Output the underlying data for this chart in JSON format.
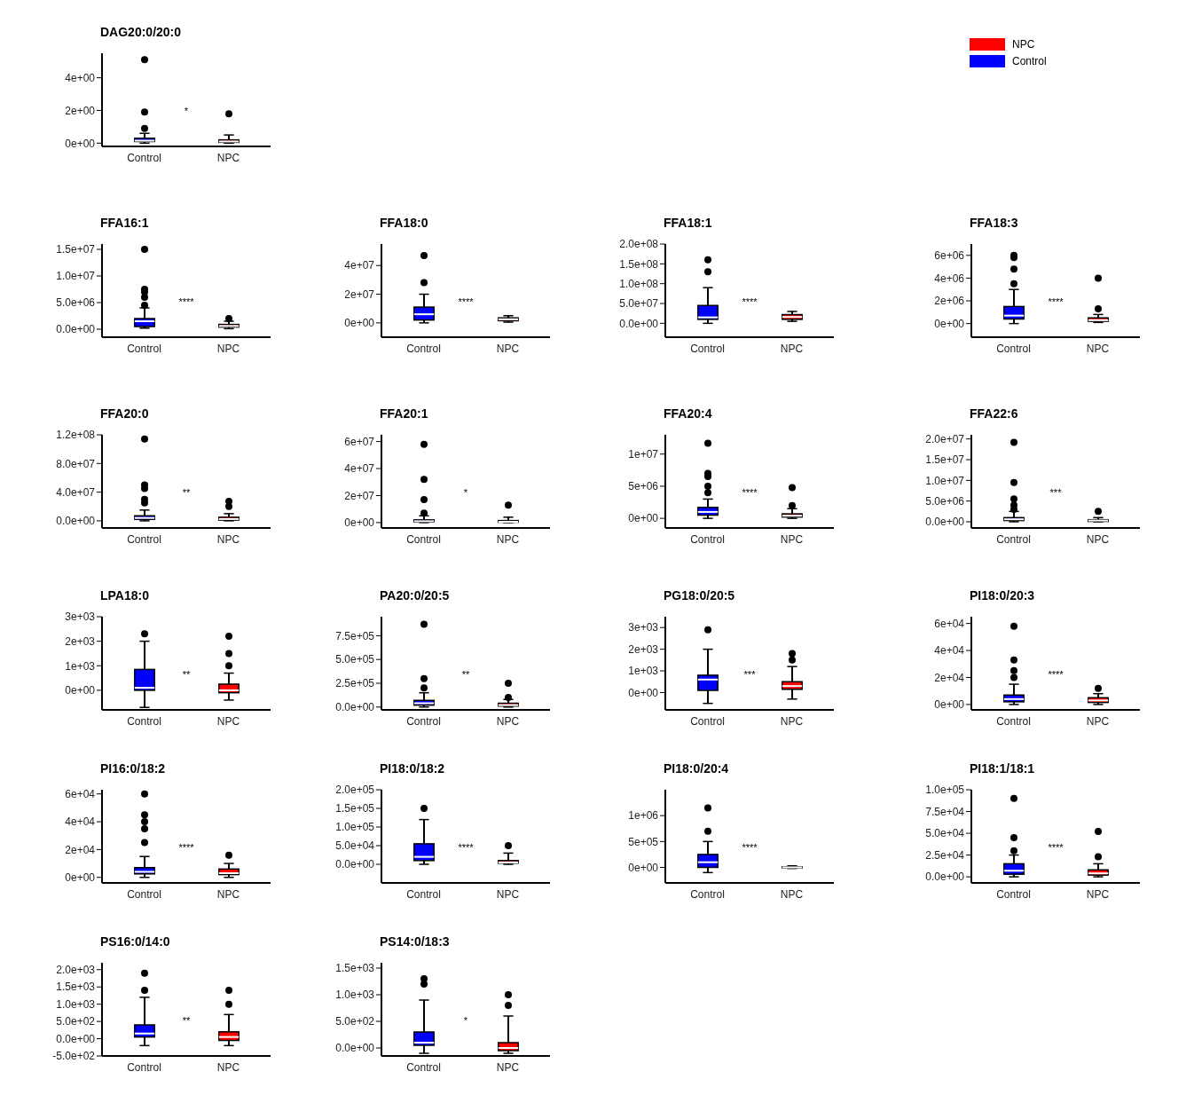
{
  "chart_data": [
    {
      "type": "box",
      "title": "DAG20:0/20:0",
      "categories": [
        "Control",
        "NPC"
      ],
      "ylim": [
        -0.2,
        5.5
      ],
      "yticks": [
        {
          "value": 0,
          "label": "0e+00"
        },
        {
          "value": 2,
          "label": "2e+00"
        },
        {
          "value": 4,
          "label": "4e+00"
        }
      ],
      "legend": "top right",
      "annotations": [
        "*"
      ],
      "series": [
        {
          "name": "Control",
          "color": "#0000ff",
          "boxes": [
            {
              "low": 0,
              "q1": 0.1,
              "median": 0.15,
              "q3": 0.3,
              "high": 0.6,
              "outliers": [
                0.9,
                1.9,
                5.1
              ]
            },
            null
          ]
        },
        {
          "name": "NPC",
          "color": "#ff0000",
          "boxes": [
            null,
            {
              "low": 0,
              "q1": 0.05,
              "median": 0.1,
              "q3": 0.2,
              "high": 0.5,
              "outliers": [
                1.8
              ]
            }
          ]
        }
      ]
    },
    {
      "type": "box",
      "title": "FFA16:1",
      "categories": [
        "Control",
        "NPC"
      ],
      "ylim": [
        -1500000,
        16000000
      ],
      "yticks": [
        {
          "value": 0,
          "label": "0.0e+00"
        },
        {
          "value": 5000000,
          "label": "5.0e+06"
        },
        {
          "value": 10000000,
          "label": "1.0e+07"
        },
        {
          "value": 15000000,
          "label": "1.5e+07"
        }
      ],
      "annotations": [
        "****"
      ],
      "series": [
        {
          "color": "#0000ff",
          "boxes": [
            {
              "low": 200000,
              "q1": 500000,
              "median": 1500000,
              "q3": 2000000,
              "high": 4000000,
              "outliers": [
                4500000,
                6000000,
                7000000,
                7500000,
                15000000
              ]
            },
            null
          ]
        },
        {
          "color": "#ff0000",
          "boxes": [
            null,
            {
              "low": 100000,
              "q1": 400000,
              "median": 600000,
              "q3": 900000,
              "high": 1500000,
              "outliers": [
                2000000
              ]
            }
          ]
        }
      ]
    },
    {
      "type": "box",
      "title": "FFA18:0",
      "categories": [
        "Control",
        "NPC"
      ],
      "ylim": [
        -10000000,
        55000000
      ],
      "yticks": [
        {
          "value": 0,
          "label": "0e+00"
        },
        {
          "value": 20000000,
          "label": "2e+07"
        },
        {
          "value": 40000000,
          "label": "4e+07"
        }
      ],
      "annotations": [
        "****"
      ],
      "series": [
        {
          "color": "#0000ff",
          "boxes": [
            {
              "low": 0,
              "q1": 2000000,
              "median": 6000000,
              "q3": 11000000,
              "high": 20000000,
              "outliers": [
                28000000,
                47000000
              ]
            },
            null
          ]
        },
        {
          "color": "#ff0000",
          "boxes": [
            null,
            {
              "low": 500000,
              "q1": 1500000,
              "median": 2500000,
              "q3": 3500000,
              "high": 5000000
            }
          ]
        }
      ]
    },
    {
      "type": "box",
      "title": "FFA18:1",
      "categories": [
        "Control",
        "NPC"
      ],
      "ylim": [
        -35000000,
        200000000
      ],
      "yticks": [
        {
          "value": 0,
          "label": "0.0e+00"
        },
        {
          "value": 50000000,
          "label": "5.0e+07"
        },
        {
          "value": 100000000,
          "label": "1.0e+08"
        },
        {
          "value": 150000000,
          "label": "1.5e+08"
        },
        {
          "value": 200000000,
          "label": "2.0e+08"
        }
      ],
      "annotations": [
        "****"
      ],
      "series": [
        {
          "color": "#0000ff",
          "boxes": [
            {
              "low": 0,
              "q1": 10000000,
              "median": 15000000,
              "q3": 45000000,
              "high": 90000000,
              "outliers": [
                130000000,
                160000000
              ]
            },
            null
          ]
        },
        {
          "color": "#ff0000",
          "boxes": [
            null,
            {
              "low": 5000000,
              "q1": 10000000,
              "median": 16000000,
              "q3": 22000000,
              "high": 30000000
            }
          ]
        }
      ]
    },
    {
      "type": "box",
      "title": "FFA18:3",
      "categories": [
        "Control",
        "NPC"
      ],
      "ylim": [
        -1200000,
        7000000
      ],
      "yticks": [
        {
          "value": 0,
          "label": "0e+00"
        },
        {
          "value": 2000000,
          "label": "2e+06"
        },
        {
          "value": 4000000,
          "label": "4e+06"
        },
        {
          "value": 6000000,
          "label": "6e+06"
        }
      ],
      "annotations": [
        "****"
      ],
      "series": [
        {
          "color": "#0000ff",
          "boxes": [
            {
              "low": 0,
              "q1": 400000,
              "median": 700000,
              "q3": 1500000,
              "high": 3000000,
              "outliers": [
                3500000,
                4800000,
                5800000,
                6000000
              ]
            },
            null
          ]
        },
        {
          "color": "#ff0000",
          "boxes": [
            null,
            {
              "low": 100000,
              "q1": 200000,
              "median": 300000,
              "q3": 500000,
              "high": 800000,
              "outliers": [
                1300000,
                4000000
              ]
            }
          ]
        }
      ]
    },
    {
      "type": "box",
      "title": "FFA20:0",
      "categories": [
        "Control",
        "NPC"
      ],
      "ylim": [
        -10000000,
        120000000
      ],
      "yticks": [
        {
          "value": 0,
          "label": "0.0e+00"
        },
        {
          "value": 40000000,
          "label": "4.0e+07"
        },
        {
          "value": 80000000,
          "label": "8.0e+07"
        },
        {
          "value": 120000000,
          "label": "1.2e+08"
        }
      ],
      "annotations": [
        "**"
      ],
      "series": [
        {
          "color": "#0000ff",
          "boxes": [
            {
              "low": 0,
              "q1": 2000000,
              "median": 4000000,
              "q3": 7000000,
              "high": 15000000,
              "outliers": [
                25000000,
                30000000,
                45000000,
                50000000,
                114000000
              ]
            },
            null
          ]
        },
        {
          "color": "#ff0000",
          "boxes": [
            null,
            {
              "low": 0,
              "q1": 1000000,
              "median": 2500000,
              "q3": 5000000,
              "high": 10000000,
              "outliers": [
                20000000,
                27000000
              ]
            }
          ]
        }
      ]
    },
    {
      "type": "box",
      "title": "FFA20:1",
      "categories": [
        "Control",
        "NPC"
      ],
      "ylim": [
        -4000000,
        65000000
      ],
      "yticks": [
        {
          "value": 0,
          "label": "0e+00"
        },
        {
          "value": 20000000,
          "label": "2e+07"
        },
        {
          "value": 40000000,
          "label": "4e+07"
        },
        {
          "value": 60000000,
          "label": "6e+07"
        }
      ],
      "annotations": [
        "*"
      ],
      "series": [
        {
          "color": "#0000ff",
          "boxes": [
            {
              "low": 0,
              "q1": 500000,
              "median": 1000000,
              "q3": 2000000,
              "high": 5000000,
              "outliers": [
                7000000,
                17000000,
                32000000,
                58000000
              ]
            },
            null
          ]
        },
        {
          "color": "#ff0000",
          "boxes": [
            null,
            {
              "low": 0,
              "q1": 300000,
              "median": 600000,
              "q3": 1500000,
              "high": 4000000,
              "outliers": [
                13000000
              ]
            }
          ]
        }
      ]
    },
    {
      "type": "box",
      "title": "FFA20:4",
      "categories": [
        "Control",
        "NPC"
      ],
      "ylim": [
        -1500000,
        13000000
      ],
      "yticks": [
        {
          "value": 0,
          "label": "0e+00"
        },
        {
          "value": 5000000,
          "label": "5e+06"
        },
        {
          "value": 10000000,
          "label": "1e+07"
        }
      ],
      "annotations": [
        "****"
      ],
      "series": [
        {
          "color": "#0000ff",
          "boxes": [
            {
              "low": 0,
              "q1": 500000,
              "median": 1000000,
              "q3": 1700000,
              "high": 3000000,
              "outliers": [
                4000000,
                5000000,
                6500000,
                7000000,
                11700000
              ]
            },
            null
          ]
        },
        {
          "color": "#ff0000",
          "boxes": [
            null,
            {
              "low": 0,
              "q1": 200000,
              "median": 400000,
              "q3": 700000,
              "high": 1500000,
              "outliers": [
                2000000,
                4800000
              ]
            }
          ]
        }
      ]
    },
    {
      "type": "box",
      "title": "FFA22:6",
      "categories": [
        "Control",
        "NPC"
      ],
      "ylim": [
        -1500000,
        21000000
      ],
      "yticks": [
        {
          "value": 0,
          "label": "0.0e+00"
        },
        {
          "value": 5000000,
          "label": "5.0e+06"
        },
        {
          "value": 10000000,
          "label": "1.0e+07"
        },
        {
          "value": 15000000,
          "label": "1.5e+07"
        },
        {
          "value": 20000000,
          "label": "2.0e+07"
        }
      ],
      "annotations": [
        "***"
      ],
      "series": [
        {
          "color": "#0000ff",
          "boxes": [
            {
              "low": 0,
              "q1": 300000,
              "median": 600000,
              "q3": 1000000,
              "high": 2500000,
              "outliers": [
                3000000,
                4000000,
                5500000,
                9500000,
                19200000
              ]
            },
            null
          ]
        },
        {
          "color": "#ff0000",
          "boxes": [
            null,
            {
              "low": 0,
              "q1": 100000,
              "median": 300000,
              "q3": 500000,
              "high": 1000000,
              "outliers": [
                2500000
              ]
            }
          ]
        }
      ]
    },
    {
      "type": "box",
      "title": "LPA18:0",
      "categories": [
        "Control",
        "NPC"
      ],
      "ylim": [
        -800,
        3000
      ],
      "yticks": [
        {
          "value": 0,
          "label": "0e+00"
        },
        {
          "value": 1000,
          "label": "1e+03"
        },
        {
          "value": 2000,
          "label": "2e+03"
        },
        {
          "value": 3000,
          "label": "3e+03"
        }
      ],
      "annotations": [
        "**"
      ],
      "series": [
        {
          "color": "#0000ff",
          "boxes": [
            {
              "low": -700,
              "q1": 0,
              "median": 100,
              "q3": 850,
              "high": 2000,
              "outliers": [
                2300
              ]
            },
            null
          ]
        },
        {
          "color": "#ff0000",
          "boxes": [
            null,
            {
              "low": -400,
              "q1": -100,
              "median": 0,
              "q3": 250,
              "high": 700,
              "outliers": [
                1000,
                1500,
                2200
              ]
            }
          ]
        }
      ]
    },
    {
      "type": "box",
      "title": "PA20:0/20:5",
      "categories": [
        "Control",
        "NPC"
      ],
      "ylim": [
        -30000,
        950000
      ],
      "yticks": [
        {
          "value": 0,
          "label": "0.0e+00"
        },
        {
          "value": 250000,
          "label": "2.5e+05"
        },
        {
          "value": 500000,
          "label": "5.0e+05"
        },
        {
          "value": 750000,
          "label": "7.5e+05"
        }
      ],
      "annotations": [
        "**"
      ],
      "series": [
        {
          "color": "#0000ff",
          "boxes": [
            {
              "low": 0,
              "q1": 20000,
              "median": 40000,
              "q3": 70000,
              "high": 150000,
              "outliers": [
                200000,
                300000,
                870000
              ]
            },
            null
          ]
        },
        {
          "color": "#ff0000",
          "boxes": [
            null,
            {
              "low": 0,
              "q1": 10000,
              "median": 20000,
              "q3": 40000,
              "high": 80000,
              "outliers": [
                100000,
                250000
              ]
            }
          ]
        }
      ]
    },
    {
      "type": "box",
      "title": "PG18:0/20:5",
      "categories": [
        "Control",
        "NPC"
      ],
      "ylim": [
        -800,
        3500
      ],
      "yticks": [
        {
          "value": 0,
          "label": "0e+00"
        },
        {
          "value": 1000,
          "label": "1e+03"
        },
        {
          "value": 2000,
          "label": "2e+03"
        },
        {
          "value": 3000,
          "label": "3e+03"
        }
      ],
      "annotations": [
        "***"
      ],
      "series": [
        {
          "color": "#0000ff",
          "boxes": [
            {
              "low": -500,
              "q1": 100,
              "median": 600,
              "q3": 800,
              "high": 2000,
              "outliers": [
                2900
              ]
            },
            null
          ]
        },
        {
          "color": "#ff0000",
          "boxes": [
            null,
            {
              "low": -300,
              "q1": 150,
              "median": 300,
              "q3": 500,
              "high": 1200,
              "outliers": [
                1500,
                1800
              ]
            }
          ]
        }
      ]
    },
    {
      "type": "box",
      "title": "PI18:0/20:3",
      "categories": [
        "Control",
        "NPC"
      ],
      "ylim": [
        -4000,
        65000
      ],
      "yticks": [
        {
          "value": 0,
          "label": "0e+00"
        },
        {
          "value": 20000,
          "label": "2e+04"
        },
        {
          "value": 40000,
          "label": "4e+04"
        },
        {
          "value": 60000,
          "label": "6e+04"
        }
      ],
      "annotations": [
        "****"
      ],
      "series": [
        {
          "color": "#0000ff",
          "boxes": [
            {
              "low": 0,
              "q1": 2000,
              "median": 4000,
              "q3": 7000,
              "high": 15000,
              "outliers": [
                20000,
                25000,
                33000,
                58000
              ]
            },
            null
          ]
        },
        {
          "color": "#ff0000",
          "boxes": [
            null,
            {
              "low": 0,
              "q1": 1500,
              "median": 3000,
              "q3": 5000,
              "high": 8000,
              "outliers": [
                12000
              ]
            }
          ]
        }
      ]
    },
    {
      "type": "box",
      "title": "PI16:0/18:2",
      "categories": [
        "Control",
        "NPC"
      ],
      "ylim": [
        -4000,
        63000
      ],
      "yticks": [
        {
          "value": 0,
          "label": "0e+00"
        },
        {
          "value": 20000,
          "label": "2e+04"
        },
        {
          "value": 40000,
          "label": "4e+04"
        },
        {
          "value": 60000,
          "label": "6e+04"
        }
      ],
      "annotations": [
        "****"
      ],
      "series": [
        {
          "color": "#0000ff",
          "boxes": [
            {
              "low": 0,
              "q1": 2500,
              "median": 4000,
              "q3": 7000,
              "high": 15000,
              "outliers": [
                25000,
                35000,
                40000,
                45000,
                60000
              ]
            },
            null
          ]
        },
        {
          "color": "#ff0000",
          "boxes": [
            null,
            {
              "low": 0,
              "q1": 2000,
              "median": 3000,
              "q3": 6000,
              "high": 10000,
              "outliers": [
                16000
              ]
            }
          ]
        }
      ]
    },
    {
      "type": "box",
      "title": "PI18:0/18:2",
      "categories": [
        "Control",
        "NPC"
      ],
      "ylim": [
        -50000,
        200000
      ],
      "yticks": [
        {
          "value": 0,
          "label": "0.0e+00"
        },
        {
          "value": 50000,
          "label": "5.0e+04"
        },
        {
          "value": 100000,
          "label": "1.0e+05"
        },
        {
          "value": 150000,
          "label": "1.5e+05"
        },
        {
          "value": 200000,
          "label": "2.0e+05"
        }
      ],
      "annotations": [
        "****"
      ],
      "series": [
        {
          "color": "#0000ff",
          "boxes": [
            {
              "low": 0,
              "q1": 10000,
              "median": 20000,
              "q3": 55000,
              "high": 120000,
              "outliers": [
                150000
              ]
            },
            null
          ]
        },
        {
          "color": "#ff0000",
          "boxes": [
            null,
            {
              "low": 0,
              "q1": 3000,
              "median": 5000,
              "q3": 10000,
              "high": 30000,
              "outliers": [
                50000
              ]
            }
          ]
        }
      ]
    },
    {
      "type": "box",
      "title": "PI18:0/20:4",
      "categories": [
        "Control",
        "NPC"
      ],
      "ylim": [
        -300000,
        1500000
      ],
      "yticks": [
        {
          "value": 0,
          "label": "0e+00"
        },
        {
          "value": 500000,
          "label": "5e+05"
        },
        {
          "value": 1000000,
          "label": "1e+06"
        }
      ],
      "annotations": [
        "****"
      ],
      "series": [
        {
          "color": "#0000ff",
          "boxes": [
            {
              "low": -100000,
              "q1": 0,
              "median": 100000,
              "q3": 250000,
              "high": 500000,
              "outliers": [
                700000,
                1150000
              ]
            },
            null
          ]
        },
        {
          "color": "#ff0000",
          "boxes": [
            null,
            {
              "low": -20000,
              "q1": -10000,
              "median": 0,
              "q3": 10000,
              "high": 30000
            }
          ]
        }
      ]
    },
    {
      "type": "box",
      "title": "PI18:1/18:1",
      "categories": [
        "Control",
        "NPC"
      ],
      "ylim": [
        -7000,
        100000
      ],
      "yticks": [
        {
          "value": 0,
          "label": "0.0e+00"
        },
        {
          "value": 25000,
          "label": "2.5e+04"
        },
        {
          "value": 50000,
          "label": "5.0e+04"
        },
        {
          "value": 75000,
          "label": "7.5e+04"
        },
        {
          "value": 100000,
          "label": "1.0e+05"
        }
      ],
      "annotations": [
        "****"
      ],
      "series": [
        {
          "color": "#0000ff",
          "boxes": [
            {
              "low": 0,
              "q1": 3000,
              "median": 7000,
              "q3": 15000,
              "high": 25000,
              "outliers": [
                30000,
                45000,
                90000
              ]
            },
            null
          ]
        },
        {
          "color": "#ff0000",
          "boxes": [
            null,
            {
              "low": 0,
              "q1": 2000,
              "median": 4000,
              "q3": 8000,
              "high": 15000,
              "outliers": [
                23000,
                52000
              ]
            }
          ]
        }
      ]
    },
    {
      "type": "box",
      "title": "PS16:0/14:0",
      "categories": [
        "Control",
        "NPC"
      ],
      "ylim": [
        -500,
        2200
      ],
      "yticks": [
        {
          "value": -500,
          "label": "-5.0e+02"
        },
        {
          "value": 0,
          "label": "0.0e+00"
        },
        {
          "value": 500,
          "label": "5.0e+02"
        },
        {
          "value": 1000,
          "label": "1.0e+03"
        },
        {
          "value": 1500,
          "label": "1.5e+03"
        },
        {
          "value": 2000,
          "label": "2.0e+03"
        }
      ],
      "annotations": [
        "**"
      ],
      "series": [
        {
          "color": "#0000ff",
          "boxes": [
            {
              "low": -200,
              "q1": 50,
              "median": 150,
              "q3": 400,
              "high": 1200,
              "outliers": [
                1400,
                1900
              ]
            },
            null
          ]
        },
        {
          "color": "#ff0000",
          "boxes": [
            null,
            {
              "low": -200,
              "q1": -50,
              "median": 50,
              "q3": 200,
              "high": 700,
              "outliers": [
                1000,
                1400
              ]
            }
          ]
        }
      ]
    },
    {
      "type": "box",
      "title": "PS14:0/18:3",
      "categories": [
        "Control",
        "NPC"
      ],
      "ylim": [
        -150,
        1600
      ],
      "yticks": [
        {
          "value": 0,
          "label": "0.0e+00"
        },
        {
          "value": 500,
          "label": "5.0e+02"
        },
        {
          "value": 1000,
          "label": "1.0e+03"
        },
        {
          "value": 1500,
          "label": "1.5e+03"
        }
      ],
      "annotations": [
        "*"
      ],
      "series": [
        {
          "color": "#0000ff",
          "boxes": [
            {
              "low": -100,
              "q1": 50,
              "median": 100,
              "q3": 300,
              "high": 900,
              "outliers": [
                1200,
                1300
              ]
            },
            null
          ]
        },
        {
          "color": "#ff0000",
          "boxes": [
            null,
            {
              "low": -100,
              "q1": -50,
              "median": 0,
              "q3": 100,
              "high": 600,
              "outliers": [
                800,
                1000
              ]
            }
          ]
        }
      ]
    }
  ]
}
